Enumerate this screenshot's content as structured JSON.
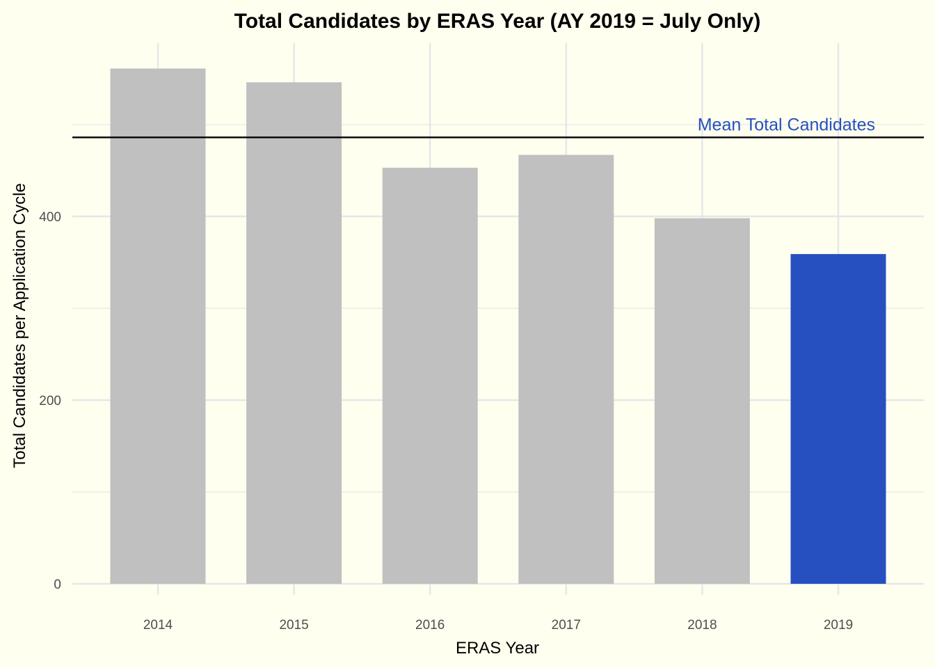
{
  "chart_data": {
    "type": "bar",
    "title": "Total Candidates by ERAS Year (AY 2019 = July Only)",
    "xlabel": "ERAS Year",
    "ylabel": "Total Candidates per Application Cycle",
    "categories": [
      "2014",
      "2015",
      "2016",
      "2017",
      "2018",
      "2019"
    ],
    "values": [
      561,
      546,
      453,
      467,
      398,
      359
    ],
    "ylim": [
      0,
      600
    ],
    "yticks": [
      0,
      200,
      400
    ],
    "grid": true,
    "bar_colors": [
      "#c0c0c0",
      "#c0c0c0",
      "#c0c0c0",
      "#c0c0c0",
      "#c0c0c0",
      "#2650c0"
    ],
    "reference_line": {
      "value": 486,
      "label": "Mean Total Candidates",
      "line_color": "#000000",
      "label_color": "#2650c0"
    },
    "background": "#fffff0",
    "gridline_color": "#e6e6ea"
  }
}
